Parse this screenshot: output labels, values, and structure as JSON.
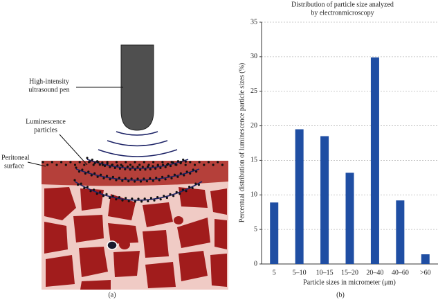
{
  "diagram": {
    "pen_label": [
      "High-intensity",
      "ultrasound pen"
    ],
    "particles_label": [
      "Luminescence",
      "particles"
    ],
    "surface_label": [
      "Peritoneal",
      "surface"
    ],
    "caption": "(a)"
  },
  "chart_data": {
    "type": "bar",
    "title": [
      "Distribution of particle size analyzed",
      "by electronmicroscopy"
    ],
    "y_label": "Percentual distribution of luminescence particle sizes (%)",
    "x_label": "Particle sizes in micrometer (μm)",
    "caption": "(b)",
    "categories": [
      "5",
      "5–10",
      "10–15",
      "15–20",
      "20–40",
      "40–60",
      ">60"
    ],
    "values": [
      8.9,
      19.5,
      18.5,
      13.2,
      29.9,
      9.2,
      1.4
    ],
    "color": "#1f4ea3",
    "ylim": [
      0,
      35
    ],
    "yticks": [
      0,
      5,
      10,
      15,
      20,
      25,
      30,
      35
    ],
    "grid": true
  }
}
